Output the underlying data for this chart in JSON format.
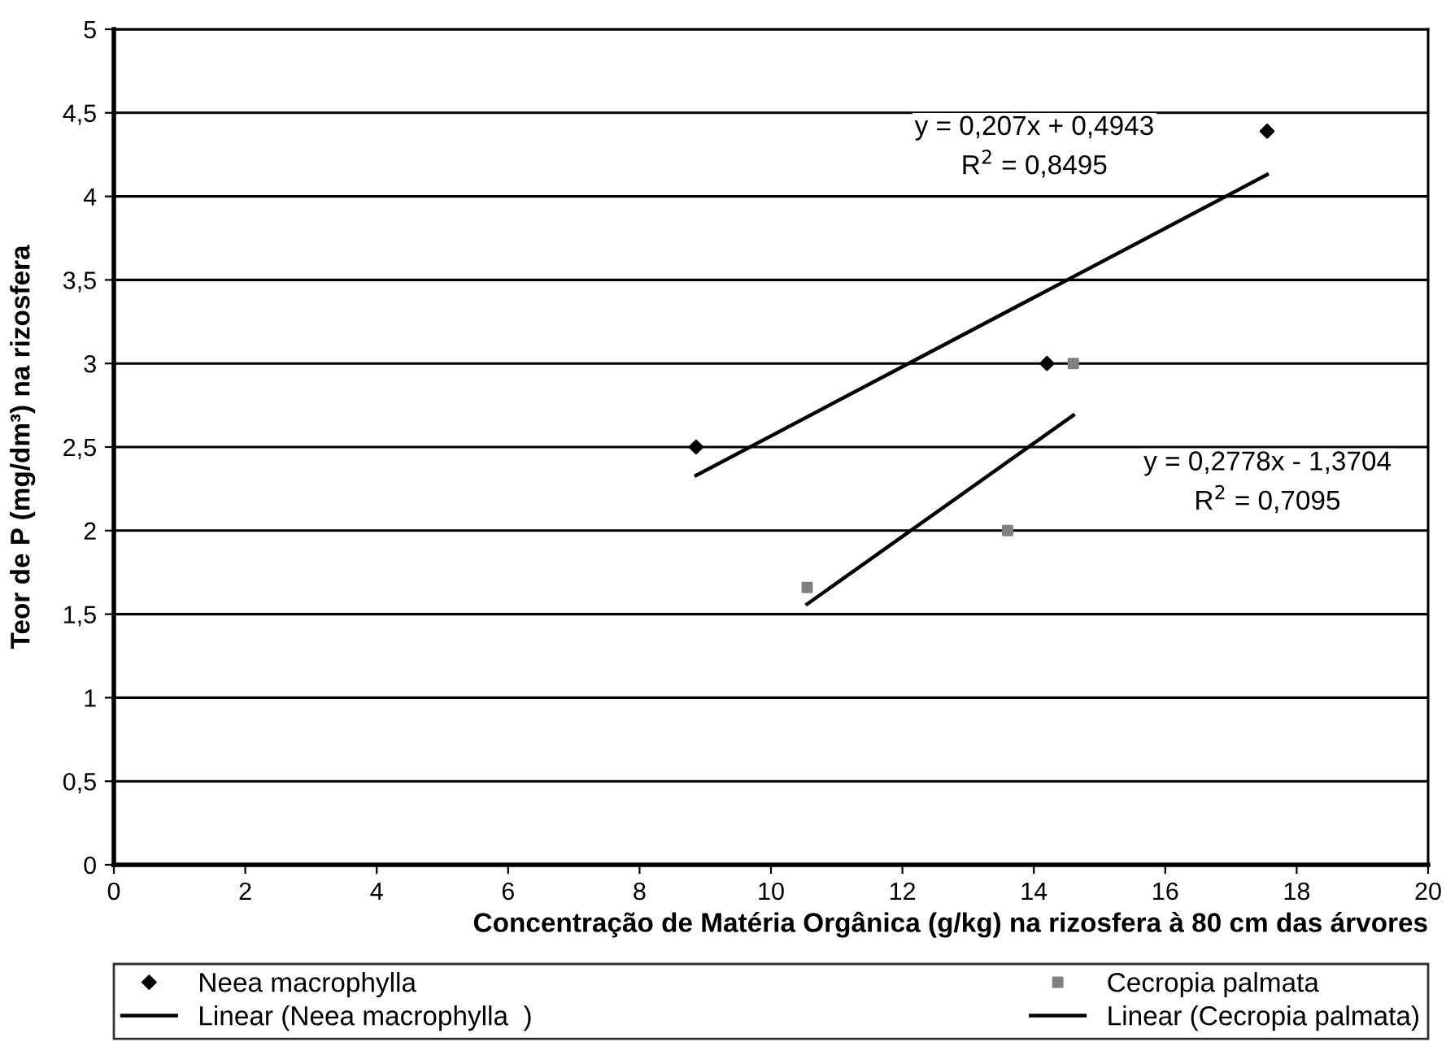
{
  "chart_data": {
    "type": "scatter",
    "xlabel": "Concentração de Matéria Orgânica (g/kg) na rizosfera à 80 cm das árvores",
    "ylabel": "Teor de P (mg/dm³) na rizosfera",
    "series": [
      {
        "name": "Neea macrophylla",
        "marker": "diamond",
        "color": "#000000",
        "x": [
          8.86,
          14.2,
          17.55
        ],
        "values": [
          2.5,
          3.0,
          4.39
        ]
      },
      {
        "name": "Linear (Neea macrophylla  )",
        "type": "line",
        "marker": "none",
        "color": "#000000",
        "x": [
          8.86,
          17.55
        ],
        "values": [
          2.33,
          4.13
        ]
      },
      {
        "name": "Cecropia palmata",
        "marker": "square",
        "color": "#808080",
        "x": [
          10.55,
          13.6,
          14.6
        ],
        "values": [
          1.66,
          2.0,
          3.0
        ]
      },
      {
        "name": "Linear (Cecropia palmata)",
        "type": "line",
        "marker": "none",
        "color": "#000000",
        "x": [
          10.55,
          14.6
        ],
        "values": [
          1.56,
          2.69
        ]
      }
    ],
    "annotations": [
      "y = 0,207x + 0,4943\nR$^{2}$ = 0,8495",
      "y = 0,2778x - 1,3704\nR$^{2}$ = 0,7095"
    ],
    "xlim": [
      0,
      20
    ],
    "xticks": [
      0,
      2,
      4,
      6,
      8,
      10,
      12,
      14,
      16,
      18,
      20
    ],
    "ylim": [
      0,
      5
    ],
    "yticks": [
      0,
      {
        "value": 0.5,
        "label": "0,5"
      },
      1,
      {
        "value": 1.5,
        "label": "1,5"
      },
      2,
      {
        "value": 2.5,
        "label": "2,5"
      },
      3,
      {
        "value": 3.5,
        "label": "3,5"
      },
      4,
      {
        "value": 4.5,
        "label": "4,5"
      },
      5
    ],
    "grid": "y",
    "legend": "bottom"
  }
}
